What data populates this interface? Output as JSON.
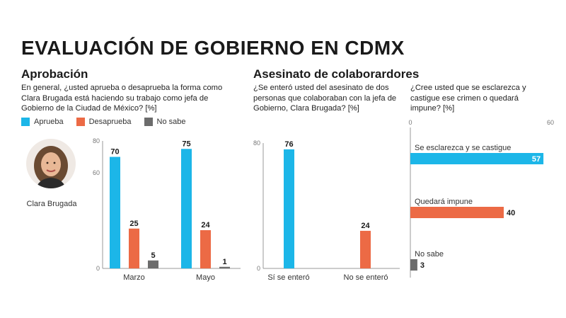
{
  "page": {
    "title": "EVALUACIÓN DE GOBIERNO EN CDMX"
  },
  "colors": {
    "aprueba": "#1cb6e8",
    "desaprueba": "#ec6a45",
    "no_sabe": "#6c6c6c",
    "axis": "#999999"
  },
  "aprobacion": {
    "heading": "Aprobación",
    "question": "En general, ¿usted aprueba o desaprueba la forma como Clara Brugada está haciendo su trabajo como jefa de Gobierno de la Ciudad de México? [%]",
    "legend": [
      "Aprueba",
      "Desaprueba",
      "No sabe"
    ],
    "person_name": "Clara Brugada",
    "avatar_icon": "person-photo-icon"
  },
  "asesinato": {
    "heading": "Asesinato de colaborardores",
    "question1": "¿Se enteró usted del asesinato de dos personas que colaboraban con la jefa de Gobierno, Clara Brugada? [%]",
    "question2": "¿Cree usted que se esclarezca y castigue ese crimen o quedará impune? [%]"
  },
  "chart_data": [
    {
      "type": "bar",
      "categories": [
        "Marzo",
        "Mayo"
      ],
      "series": [
        {
          "name": "Aprueba",
          "values": [
            70,
            75
          ]
        },
        {
          "name": "Desaprueba",
          "values": [
            25,
            24
          ]
        },
        {
          "name": "No sabe",
          "values": [
            5,
            1
          ]
        }
      ],
      "yticks": [
        "80",
        "60",
        "0"
      ],
      "ylim": [
        0,
        80
      ],
      "grid": false
    },
    {
      "type": "bar",
      "categories": [
        "Sí se enteró",
        "No se enteró"
      ],
      "values": [
        76,
        24
      ],
      "yticks": [
        "80",
        "0"
      ],
      "ylim": [
        0,
        80
      ],
      "grid": false
    },
    {
      "type": "bar",
      "orientation": "horizontal",
      "categories": [
        "Se esclarezca y se castigue",
        "Quedará impune",
        "No sabe"
      ],
      "values": [
        57,
        40,
        3
      ],
      "xticks": [
        "0",
        "60"
      ],
      "xlim": [
        0,
        60
      ],
      "grid": false
    }
  ]
}
